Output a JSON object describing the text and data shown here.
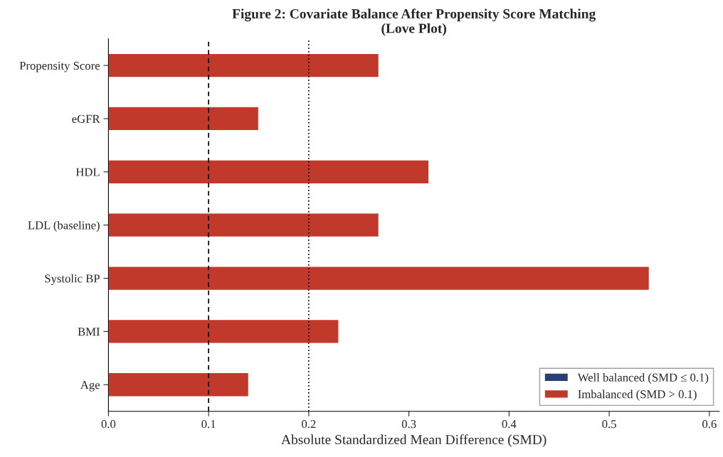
{
  "chart_data": {
    "type": "bar",
    "orientation": "horizontal",
    "title": "Figure 2: Covariate Balance After Propensity Score Matching\n(Love Plot)",
    "xlabel": "Absolute Standardized Mean Difference (SMD)",
    "categories": [
      "Propensity Score",
      "eGFR",
      "HDL",
      "LDL (baseline)",
      "Systolic BP",
      "BMI",
      "Age"
    ],
    "series": [
      {
        "name": "Well balanced (SMD ≤ 0.1)",
        "color": "#2b3f74",
        "values": [
          null,
          null,
          null,
          null,
          null,
          null,
          null
        ]
      },
      {
        "name": "Imbalanced (SMD > 0.1)",
        "color": "#c0392b",
        "values": [
          0.27,
          0.15,
          0.32,
          0.27,
          0.54,
          0.23,
          0.14
        ]
      }
    ],
    "xlim": [
      0,
      0.61
    ],
    "xticks": [
      {
        "value": 0,
        "label": "0.0"
      },
      0.1,
      0.2,
      0.3,
      0.4,
      0.5,
      0.6
    ],
    "ref_lines": [
      {
        "axis": "x",
        "value": 0.1,
        "line_style": "dashed",
        "color": "#000000"
      },
      {
        "axis": "x",
        "value": 0.2,
        "line_style": "dotted",
        "color": "#000000"
      }
    ],
    "grid": false,
    "legend": "bottom right"
  }
}
